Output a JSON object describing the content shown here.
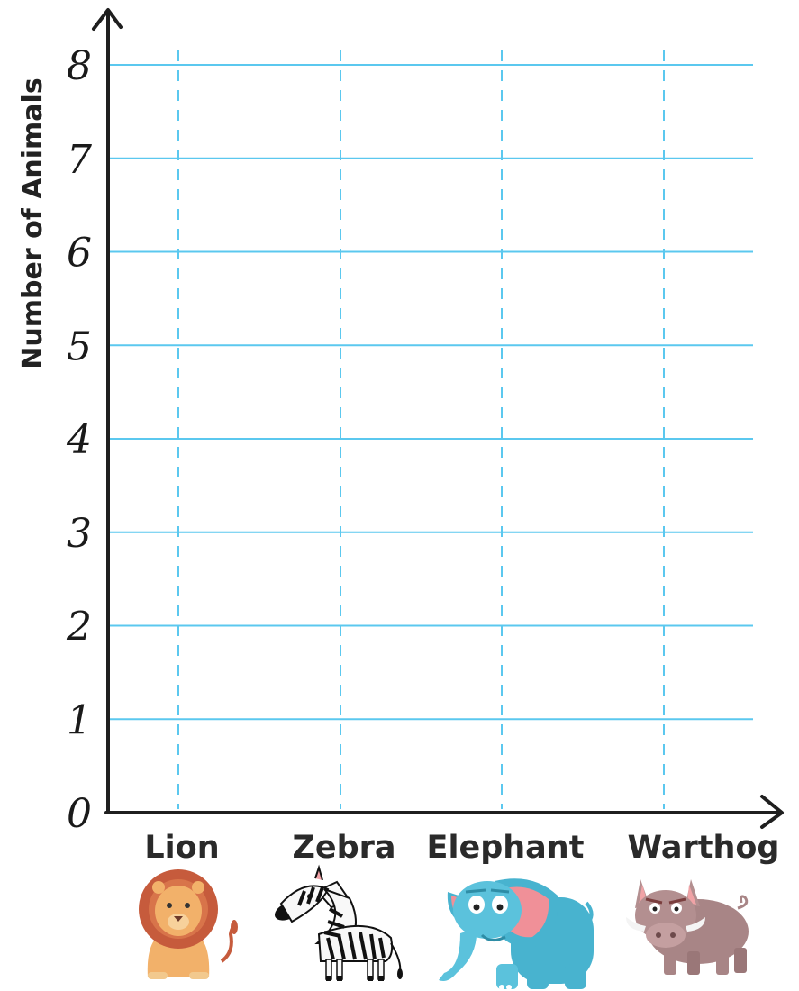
{
  "chart_data": {
    "type": "bar",
    "title": "",
    "xlabel": "",
    "ylabel": "Number of Animals",
    "categories": [
      "Lion",
      "Zebra",
      "Elephant",
      "Warthog"
    ],
    "values": [
      0,
      0,
      0,
      0
    ],
    "ylim": [
      0,
      8
    ],
    "yticks": [
      "0",
      "1",
      "2",
      "3",
      "4",
      "5",
      "6",
      "7",
      "8"
    ],
    "grid": true,
    "icons": [
      "lion-icon",
      "zebra-icon",
      "elephant-icon",
      "warthog-icon"
    ],
    "colors": {
      "grid": "#5bc8ef",
      "axis": "#1f1f1f",
      "lion_mane": "#c65b3c",
      "lion_face": "#f2b16a",
      "zebra_stripe": "#111111",
      "elephant": "#48b3cf",
      "elephant_ear": "#f09098",
      "warthog": "#a88586"
    }
  }
}
